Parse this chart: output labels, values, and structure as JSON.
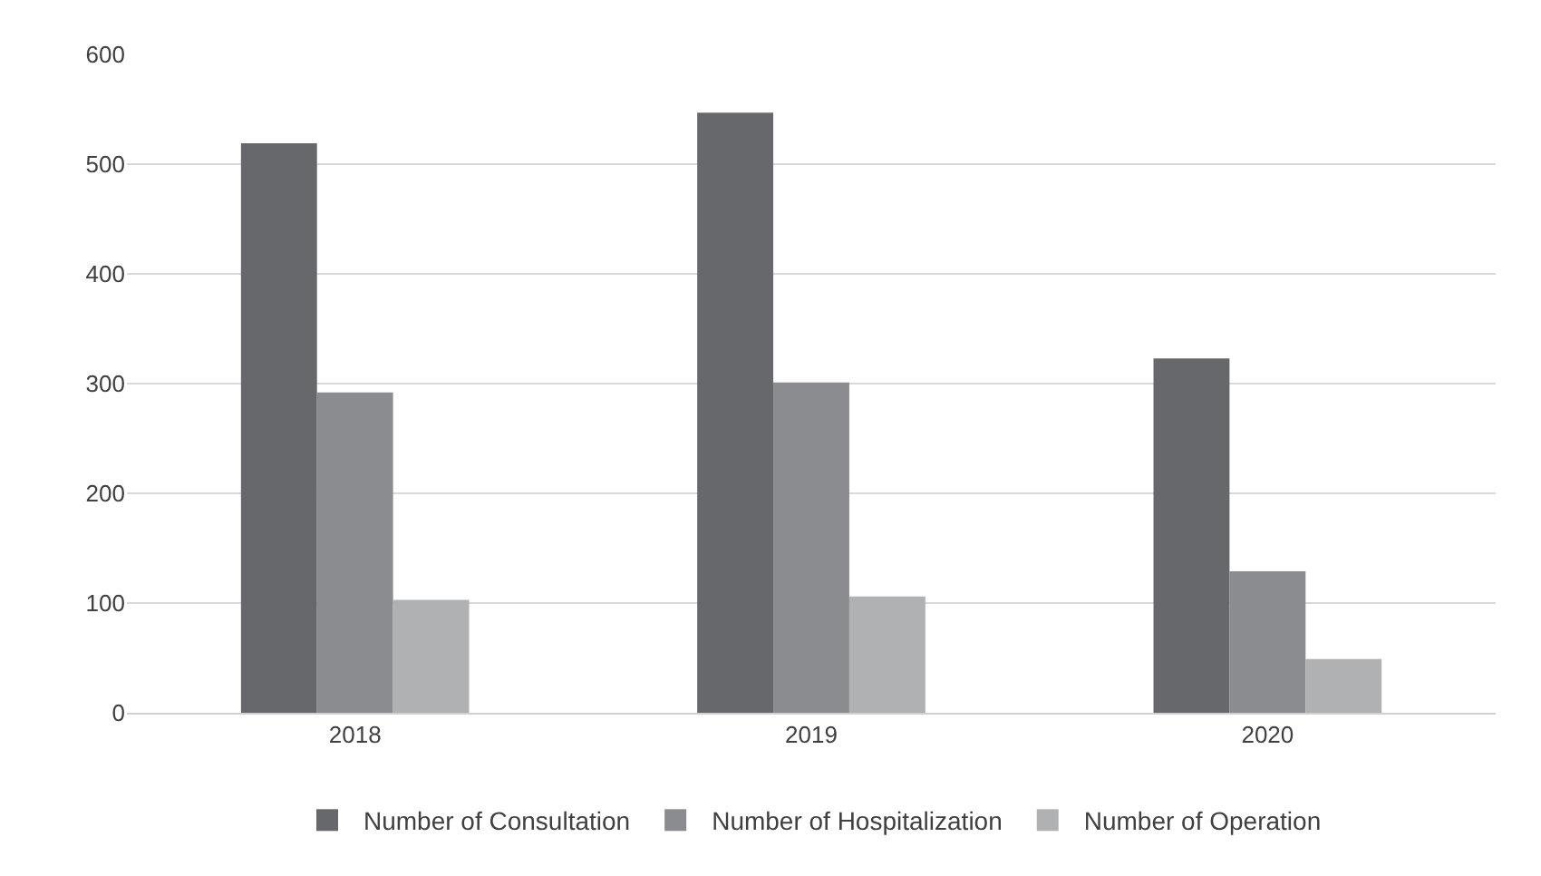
{
  "chart_data": {
    "type": "bar",
    "categories": [
      "2018",
      "2019",
      "2020"
    ],
    "series": [
      {
        "name": "Number of Consultation",
        "color": "#67686b",
        "values": [
          519,
          547,
          323
        ]
      },
      {
        "name": "Number of Hospitalization",
        "color": "#8b8c8f",
        "values": [
          292,
          301,
          129
        ]
      },
      {
        "name": "Number of Operation",
        "color": "#b0b1b3",
        "values": [
          103,
          106,
          49
        ]
      }
    ],
    "ylim": [
      0,
      600
    ],
    "yticks": [
      0,
      100,
      200,
      300,
      400,
      500,
      600
    ],
    "grid": "y",
    "legend": "bottom"
  }
}
